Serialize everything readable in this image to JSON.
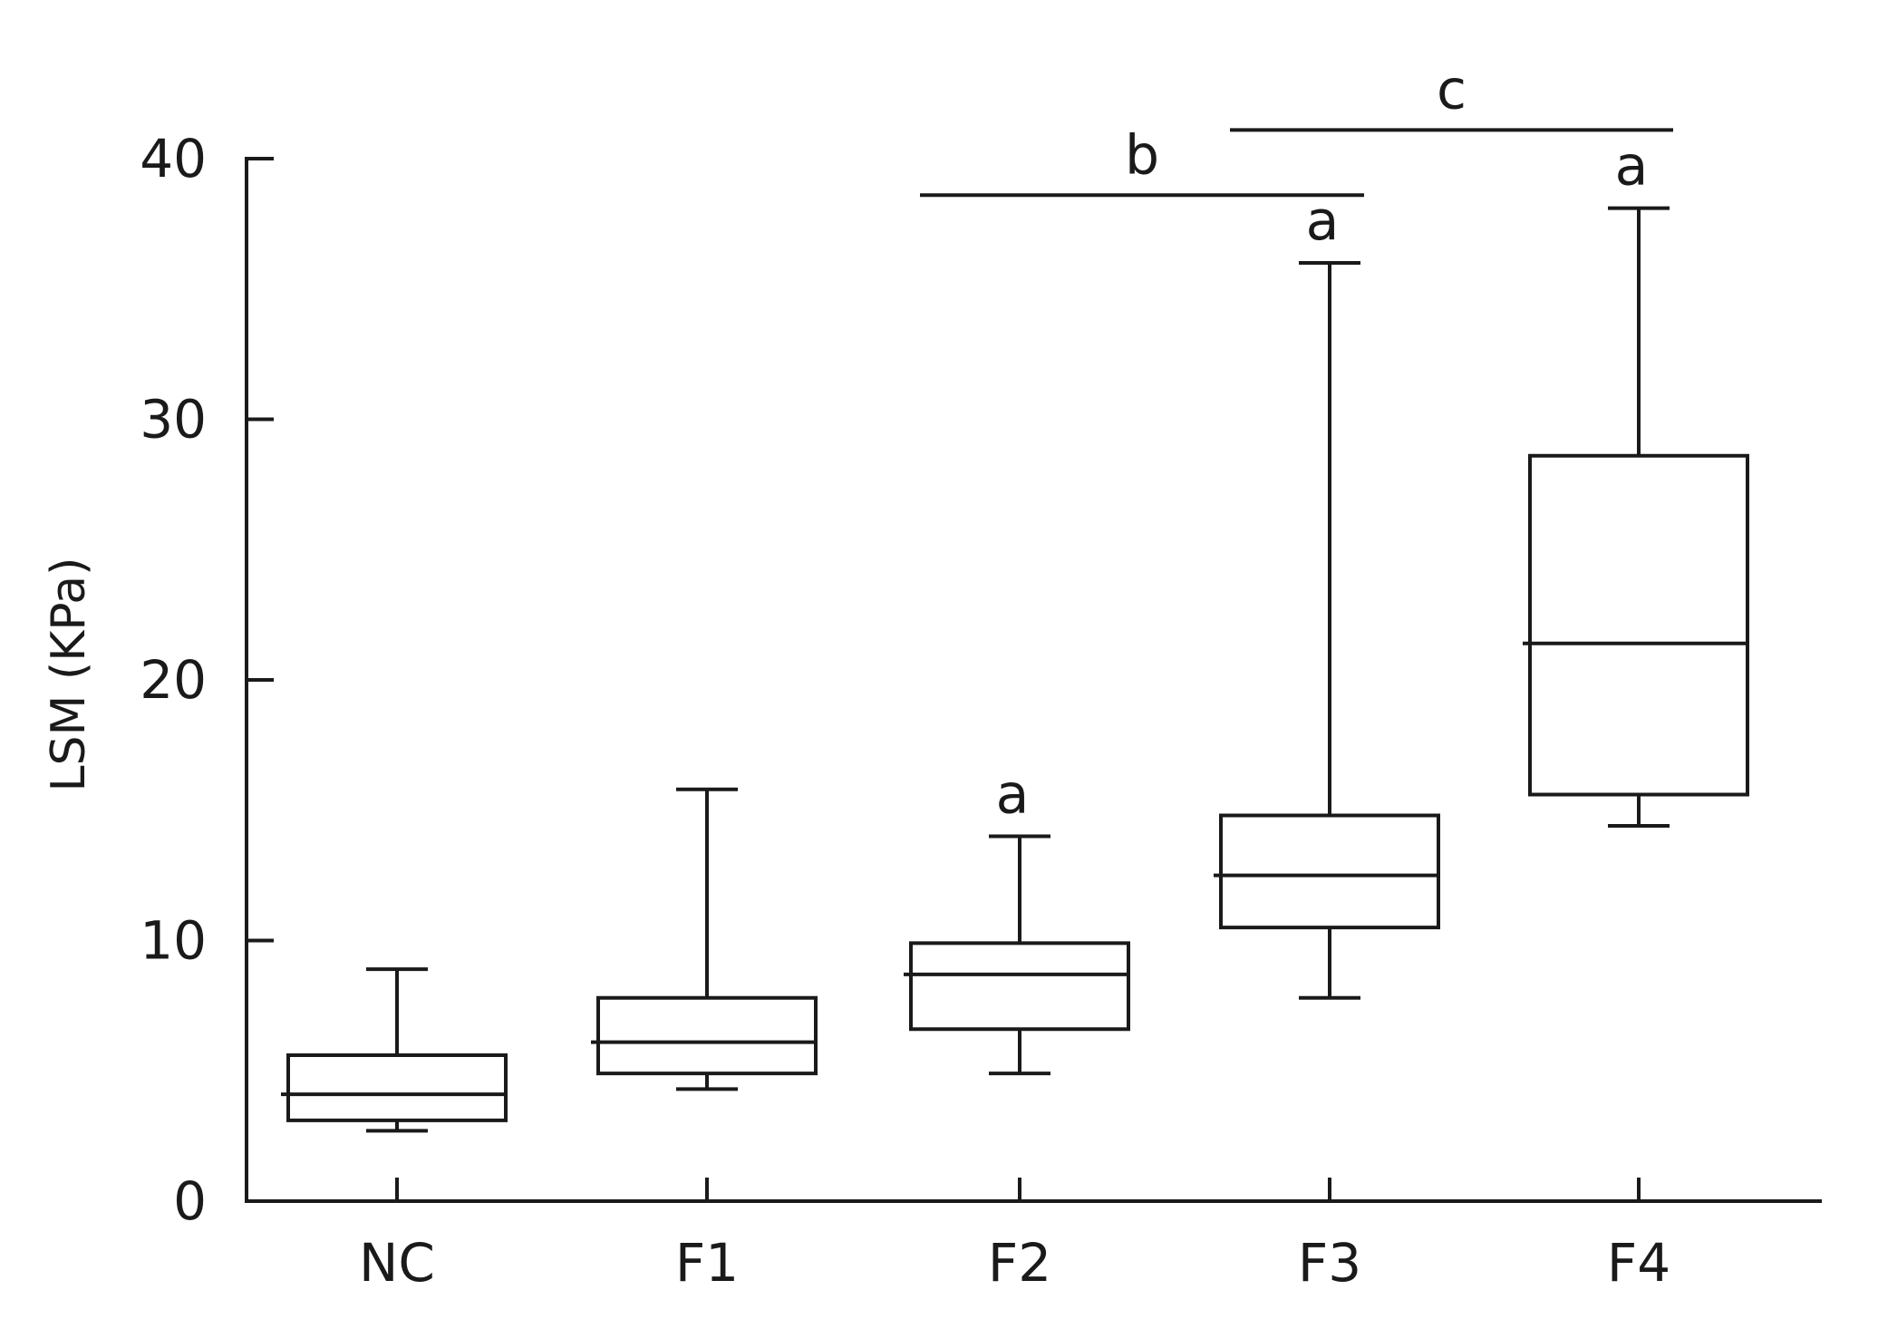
{
  "chart_data": {
    "type": "box",
    "title": "",
    "xlabel": "",
    "ylabel": "LSM (KPa)",
    "ylim": [
      0,
      40
    ],
    "yticks": [
      0,
      10,
      20,
      30,
      40
    ],
    "grid": false,
    "legend": "none",
    "categories": [
      "NC",
      "F1",
      "F2",
      "F3",
      "F4"
    ],
    "boxes": [
      {
        "category": "NC",
        "min": 2.7,
        "q1": 3.1,
        "median": 4.1,
        "q3": 5.6,
        "max": 8.9,
        "annotation": ""
      },
      {
        "category": "F1",
        "min": 4.3,
        "q1": 4.9,
        "median": 6.1,
        "q3": 7.8,
        "max": 15.8,
        "annotation": ""
      },
      {
        "category": "F2",
        "min": 4.9,
        "q1": 6.6,
        "median": 8.7,
        "q3": 9.9,
        "max": 14.0,
        "annotation": "a"
      },
      {
        "category": "F3",
        "min": 7.8,
        "q1": 10.5,
        "median": 12.5,
        "q3": 14.8,
        "max": 36.0,
        "annotation": "a"
      },
      {
        "category": "F4",
        "min": 14.4,
        "q1": 15.6,
        "median": 21.4,
        "q3": 28.6,
        "max": 38.1,
        "annotation": "a"
      }
    ],
    "brackets": [
      {
        "label": "b",
        "from": "F2",
        "to": "F3",
        "y": 38.6
      },
      {
        "label": "c",
        "from": "F3",
        "to": "F4",
        "y": 41.1
      }
    ]
  }
}
